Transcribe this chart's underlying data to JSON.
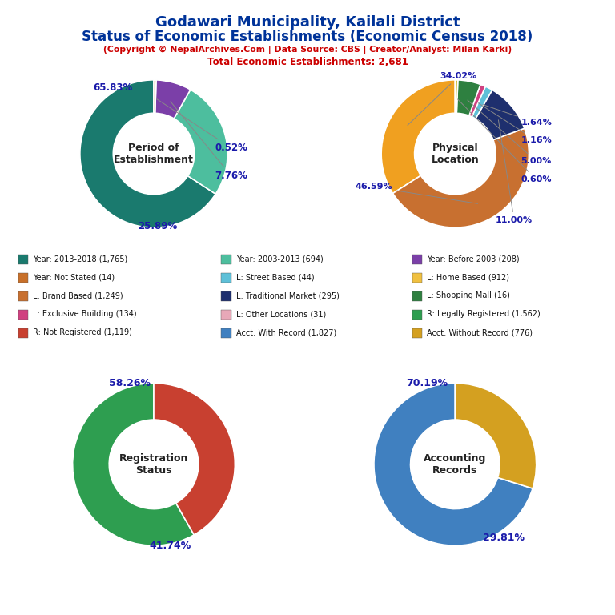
{
  "title_line1": "Godawari Municipality, Kailali District",
  "title_line2": "Status of Economic Establishments (Economic Census 2018)",
  "subtitle": "(Copyright © NepalArchives.Com | Data Source: CBS | Creator/Analyst: Milan Karki)",
  "subtitle2": "Total Economic Establishments: 2,681",
  "pie1_title": "Period of\nEstablishment",
  "pie1_values": [
    65.83,
    25.89,
    7.76,
    0.52
  ],
  "pie1_colors": [
    "#1a7a6e",
    "#4dbe9e",
    "#7b3fa8",
    "#c8702a"
  ],
  "pie1_startangle": 90,
  "pie2_title": "Physical\nLocation",
  "pie2_values": [
    34.02,
    46.59,
    11.0,
    1.64,
    1.16,
    5.0,
    0.6
  ],
  "pie2_colors": [
    "#f0a020",
    "#c87030",
    "#1e2f6e",
    "#5ec0d8",
    "#d04080",
    "#2e8040",
    "#c8b420"
  ],
  "pie2_startangle": 90,
  "pie3_title": "Registration\nStatus",
  "pie3_values": [
    58.26,
    41.74
  ],
  "pie3_colors": [
    "#2e9e50",
    "#c84030"
  ],
  "pie3_startangle": 90,
  "pie4_title": "Accounting\nRecords",
  "pie4_values": [
    70.19,
    29.81
  ],
  "pie4_colors": [
    "#4080c0",
    "#d4a020"
  ],
  "pie4_startangle": 90,
  "legend_items": [
    {
      "label": "Year: 2013-2018 (1,765)",
      "color": "#1a7a6e"
    },
    {
      "label": "Year: 2003-2013 (694)",
      "color": "#4dbe9e"
    },
    {
      "label": "Year: Before 2003 (208)",
      "color": "#7b3fa8"
    },
    {
      "label": "Year: Not Stated (14)",
      "color": "#c8702a"
    },
    {
      "label": "L: Street Based (44)",
      "color": "#5ec0d8"
    },
    {
      "label": "L: Home Based (912)",
      "color": "#f0c040"
    },
    {
      "label": "L: Brand Based (1,249)",
      "color": "#c87030"
    },
    {
      "label": "L: Traditional Market (295)",
      "color": "#1e2f6e"
    },
    {
      "label": "L: Shopping Mall (16)",
      "color": "#2e8040"
    },
    {
      "label": "L: Exclusive Building (134)",
      "color": "#d04080"
    },
    {
      "label": "L: Other Locations (31)",
      "color": "#e8a8b8"
    },
    {
      "label": "R: Legally Registered (1,562)",
      "color": "#2e9e50"
    },
    {
      "label": "R: Not Registered (1,119)",
      "color": "#c84030"
    },
    {
      "label": "Acct: With Record (1,827)",
      "color": "#4080c0"
    },
    {
      "label": "Acct: Without Record (776)",
      "color": "#d4a020"
    }
  ],
  "background_color": "#ffffff",
  "title_color": "#003399",
  "subtitle_color": "#cc0000",
  "label_color": "#1a1aaa",
  "center_text_color": "#222222"
}
